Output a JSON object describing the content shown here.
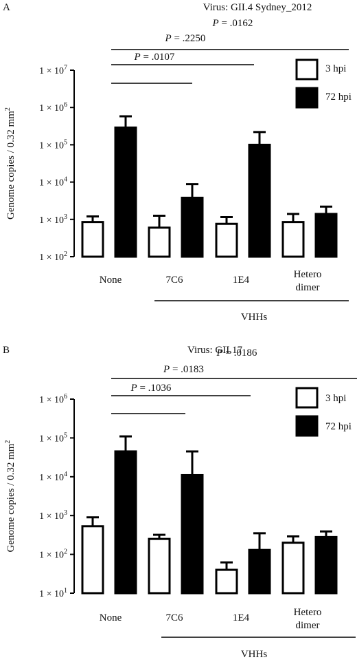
{
  "chart_data": [
    {
      "panel_label": "A",
      "title": "Virus: GII.4 Sydney_2012",
      "type": "bar",
      "log_scale": true,
      "ylabel": "Genome copies / 0.32 mm",
      "ylabel_sup": "2",
      "ylim": [
        100,
        10000000
      ],
      "yticks": [
        {
          "mant": "1 × 10",
          "exp": "2",
          "value": 100
        },
        {
          "mant": "1 × 10",
          "exp": "3",
          "value": 1000
        },
        {
          "mant": "1 × 10",
          "exp": "4",
          "value": 10000
        },
        {
          "mant": "1 × 10",
          "exp": "5",
          "value": 100000
        },
        {
          "mant": "1 × 10",
          "exp": "6",
          "value": 1000000
        },
        {
          "mant": "1 × 10",
          "exp": "7",
          "value": 10000000
        }
      ],
      "categories": [
        "None",
        "7C6",
        "1E4",
        "Hetero dimer"
      ],
      "series": [
        {
          "name": "3 hpi",
          "fill": "#ffffff",
          "values": [
            850,
            600,
            760,
            850
          ],
          "errors": [
            1200,
            1250,
            1150,
            1400
          ]
        },
        {
          "name": "72 hpi",
          "fill": "#000000",
          "values": [
            290000,
            3800,
            100000,
            1400
          ],
          "errors": [
            580000,
            8800,
            220000,
            2200
          ]
        }
      ],
      "group_label": "VHHs",
      "comparisons": [
        {
          "p_label": "P",
          "p_value": " = .0107",
          "from": 0,
          "to": 1
        },
        {
          "p_label": "P",
          "p_value": " = .2250",
          "from": 0,
          "to": 2
        },
        {
          "p_label": "P",
          "p_value": " = .0162",
          "from": 0,
          "to": 3
        }
      ],
      "legend_position": "top-right"
    },
    {
      "panel_label": "B",
      "title": "Virus: GII.17",
      "type": "bar",
      "log_scale": true,
      "ylabel": "Genome copies / 0.32 mm",
      "ylabel_sup": "2",
      "ylim": [
        10,
        1000000
      ],
      "yticks": [
        {
          "mant": "1 × 10",
          "exp": "1",
          "value": 10
        },
        {
          "mant": "1 × 10",
          "exp": "2",
          "value": 100
        },
        {
          "mant": "1 × 10",
          "exp": "3",
          "value": 1000
        },
        {
          "mant": "1 × 10",
          "exp": "4",
          "value": 10000
        },
        {
          "mant": "1 × 10",
          "exp": "5",
          "value": 100000
        },
        {
          "mant": "1 × 10",
          "exp": "6",
          "value": 1000000
        }
      ],
      "categories": [
        "None",
        "7C6",
        "1E4",
        "Hetero dimer"
      ],
      "series": [
        {
          "name": "3 hpi",
          "fill": "#ffffff",
          "values": [
            530,
            250,
            40,
            200
          ],
          "errors": [
            900,
            320,
            62,
            290
          ]
        },
        {
          "name": "72 hpi",
          "fill": "#000000",
          "values": [
            45000,
            11000,
            130,
            280
          ],
          "errors": [
            110000,
            45000,
            350,
            390
          ]
        }
      ],
      "group_label": "VHHs",
      "comparisons": [
        {
          "p_label": "P",
          "p_value": " = .1036",
          "from": 0,
          "to": 1
        },
        {
          "p_label": "P",
          "p_value": " = .0183",
          "from": 0,
          "to": 2
        },
        {
          "p_label": "P",
          "p_value": " = .0186",
          "from": 0,
          "to": 3
        }
      ],
      "legend_position": "top-right"
    }
  ]
}
